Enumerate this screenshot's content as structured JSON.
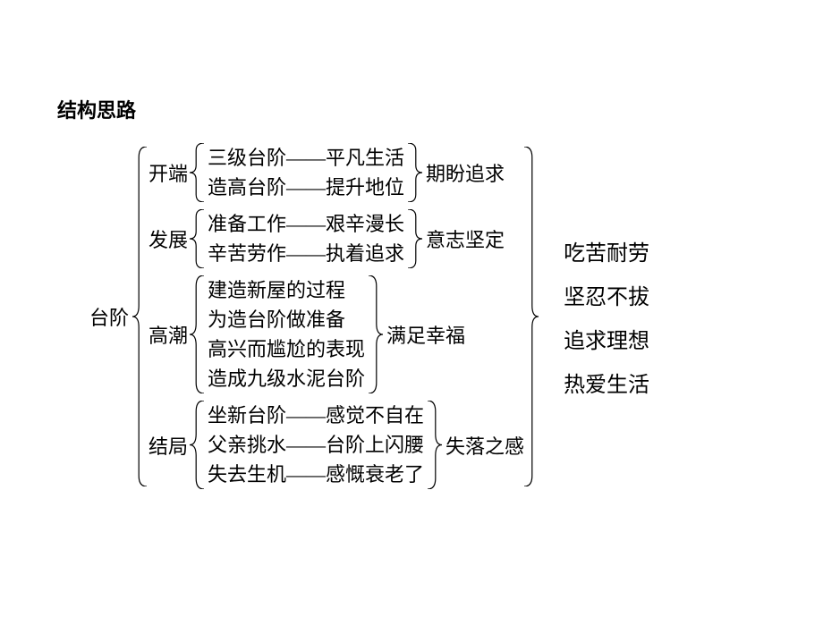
{
  "title": "结构思路",
  "root": "台阶",
  "dot": "•",
  "sections": [
    {
      "label": "开端",
      "items": [
        "三级台阶——平凡生活",
        "造高台阶——提升地位"
      ],
      "summary": "期盼追求"
    },
    {
      "label": "发展",
      "items": [
        "准备工作——艰辛漫长",
        "辛苦劳作——执着追求"
      ],
      "summary": "意志坚定"
    },
    {
      "label": "高潮",
      "items": [
        "建造新屋的过程",
        "为造台阶做准备",
        "高兴而尴尬的表现",
        "造成九级水泥台阶"
      ],
      "summary": "满足幸福"
    },
    {
      "label": "结局",
      "items": [
        "坐新台阶——感觉不自在",
        "父亲挑水——台阶上闪腰",
        "失去生机——感慨衰老了"
      ],
      "summary": "失落之感"
    }
  ],
  "finals": [
    "吃苦耐劳",
    "坚忍不拔",
    "追求理想",
    "热爱生活"
  ],
  "style": {
    "background_color": "#ffffff",
    "text_color": "#000000",
    "brace_color": "#000000",
    "brace_stroke_width": 1.2,
    "title_fontsize": 22,
    "body_fontsize": 22,
    "final_fontsize": 24,
    "line_height": 33
  },
  "geometry": {
    "root_brace_height": 380,
    "root_close_brace_height": 380,
    "section_row_heights": [
      66,
      66,
      132,
      99
    ],
    "brace_width": 16
  }
}
